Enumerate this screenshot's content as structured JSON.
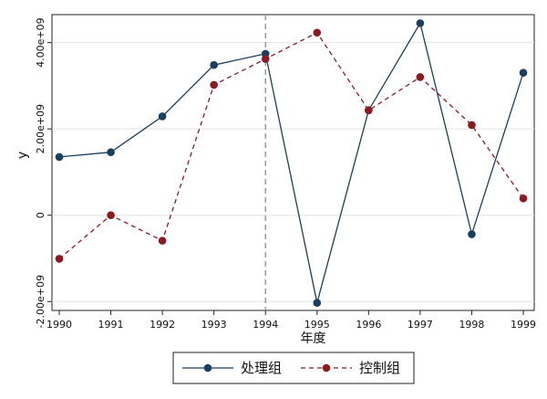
{
  "chart_data": {
    "type": "line",
    "xlabel": "年度",
    "ylabel": "y",
    "x": [
      1990,
      1991,
      1992,
      1993,
      1994,
      1995,
      1996,
      1997,
      1998,
      1999
    ],
    "x_tick_labels": [
      "1990",
      "1991",
      "1992",
      "1993",
      "1994",
      "1995",
      "1996",
      "1997",
      "1998",
      "1999"
    ],
    "xlim": [
      1990,
      1999
    ],
    "y_ticks": [
      -2000000000,
      0,
      2000000000,
      4000000000
    ],
    "y_tick_labels": [
      "-2.00e+09",
      "0",
      "2.00e+09",
      "4.00e+09"
    ],
    "ylim": [
      -2100000000,
      4500000000
    ],
    "grid": true,
    "reference_line": {
      "x": 1994,
      "style": "dashed",
      "color": "#999999"
    },
    "legend_position": "bottom",
    "series": [
      {
        "name": "处理组",
        "color": "#1b3f5e",
        "line_style": "solid",
        "values": [
          1350000000,
          1460000000,
          2290000000,
          3480000000,
          3740000000,
          -2030000000,
          2430000000,
          4450000000,
          -440000000,
          3300000000
        ]
      },
      {
        "name": "控制组",
        "color": "#8b1a22",
        "line_style": "dashed",
        "values": [
          -1010000000,
          0,
          -590000000,
          3020000000,
          3620000000,
          4230000000,
          2430000000,
          3200000000,
          2090000000,
          390000000
        ]
      }
    ]
  }
}
